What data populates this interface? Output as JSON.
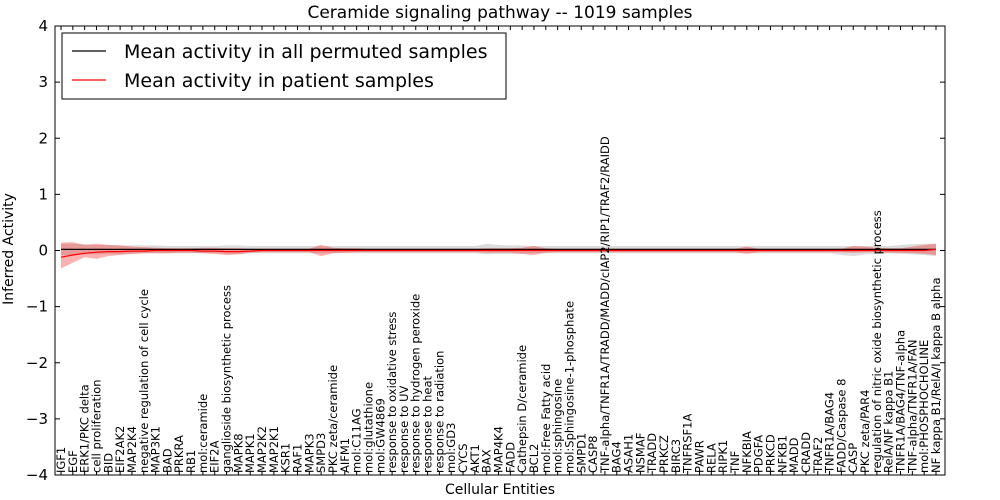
{
  "chart_data": {
    "type": "line",
    "title": "Ceramide signaling pathway -- 1019 samples",
    "xlabel": "Cellular Entities",
    "ylabel": "Inferred Activity",
    "ylim": [
      -4,
      4
    ],
    "yticks": [
      "4",
      "3",
      "2",
      "1",
      "0",
      "−1",
      "−2",
      "−3",
      "−4"
    ],
    "legend": {
      "position": "top-left",
      "entries": [
        {
          "name": "Mean activity in all permuted samples",
          "color": "#000000"
        },
        {
          "name": "Mean activity in patient samples",
          "color": "#ff0000"
        }
      ]
    },
    "categories": [
      "IGF1",
      "EGF",
      "ERK1/PKC delta",
      "cell proliferation",
      "BID",
      "EIF2AK2",
      "MAP2K4",
      "negative regulation of cell cycle",
      "MAP3K1",
      "BAD",
      "PRKRA",
      "RB1",
      "mol:ceramide",
      "EIF2A",
      "ganglioside biosynthetic process",
      "MAPK8",
      "MAPK1",
      "MAP2K2",
      "MAP2K1",
      "KSR1",
      "RAF1",
      "MAPK3",
      "SMPD3",
      "PKC zeta/ceramide",
      "AIFM1",
      "mol:C11AG",
      "mol:glutathione",
      "mol:GW4869",
      "response to oxidative stress",
      "response to UV",
      "response to hydrogen peroxide",
      "response to heat",
      "response to radiation",
      "mol:GD3",
      "CYCS",
      "AKT1",
      "BAX",
      "MAP4K4",
      "FADD",
      "Cathepsin D/ceramide",
      "BCL2",
      "mol:Free Fatty acid",
      "mol:sphingosine",
      "mol:Sphingosine-1-phosphate",
      "SMPD1",
      "CASP8",
      "TNF-alpha/TNFR1A/TRADD/MADD/cIAP2/RIP1/TRAF2/RAIDD",
      "BAG4",
      "ASAH1",
      "NSMAF",
      "TRADD",
      "PRKCZ",
      "BIRC3",
      "TNFRSF1A",
      "PAWR",
      "RELA",
      "RIPK1",
      "TNF",
      "NFKBIA",
      "PDGFA",
      "PRKCD",
      "NFKB1",
      "MADD",
      "CRADD",
      "TRAF2",
      "TNFR1A/BAG4",
      "FADD/Caspase 8",
      "CASP",
      "PKC zeta/PAR4",
      "regulation of nitric oxide biosynthetic process",
      "RelA/NF kappa B1",
      "TNFR1A/BAG4/TNF-alpha",
      "TNF-alpha/TNFR1A/FAN",
      "mol:PHOSPHOCHOLINE",
      "NF kappa B1/RelA/I kappa B alpha"
    ],
    "series": [
      {
        "name": "Mean activity in all permuted samples",
        "color": "#000000",
        "values": [
          0.02,
          0.02,
          0.02,
          0.02,
          0.02,
          0.02,
          0.02,
          0.02,
          0.02,
          0.02,
          0.02,
          0.02,
          0.02,
          0.02,
          0.02,
          0.02,
          0.02,
          0.02,
          0.02,
          0.02,
          0.02,
          0.02,
          0.02,
          0.02,
          0.02,
          0.02,
          0.02,
          0.02,
          0.02,
          0.02,
          0.02,
          0.02,
          0.02,
          0.02,
          0.02,
          0.02,
          0.02,
          0.02,
          0.02,
          0.02,
          0.02,
          0.02,
          0.02,
          0.02,
          0.02,
          0.02,
          0.02,
          0.02,
          0.02,
          0.02,
          0.02,
          0.02,
          0.02,
          0.02,
          0.02,
          0.02,
          0.02,
          0.02,
          0.02,
          0.02,
          0.02,
          0.02,
          0.02,
          0.02,
          0.02,
          0.02,
          0.02,
          0.02,
          0.02,
          0.02,
          0.02,
          0.02,
          0.02,
          0.02,
          0.02
        ],
        "band_upper": [
          0.12,
          0.12,
          0.11,
          0.1,
          0.1,
          0.09,
          0.09,
          0.09,
          0.09,
          0.08,
          0.08,
          0.08,
          0.08,
          0.08,
          0.09,
          0.09,
          0.08,
          0.08,
          0.08,
          0.08,
          0.08,
          0.08,
          0.08,
          0.08,
          0.08,
          0.08,
          0.08,
          0.08,
          0.08,
          0.08,
          0.08,
          0.08,
          0.08,
          0.08,
          0.08,
          0.08,
          0.12,
          0.1,
          0.09,
          0.09,
          0.08,
          0.08,
          0.08,
          0.08,
          0.08,
          0.08,
          0.08,
          0.08,
          0.08,
          0.08,
          0.08,
          0.08,
          0.08,
          0.08,
          0.08,
          0.08,
          0.08,
          0.08,
          0.08,
          0.08,
          0.08,
          0.08,
          0.08,
          0.08,
          0.08,
          0.08,
          0.08,
          0.08,
          0.08,
          0.08,
          0.08,
          0.1,
          0.11,
          0.12,
          0.12
        ],
        "band_lower": [
          -0.08,
          -0.08,
          -0.07,
          -0.07,
          -0.06,
          -0.06,
          -0.06,
          -0.05,
          -0.05,
          -0.05,
          -0.05,
          -0.05,
          -0.05,
          -0.05,
          -0.06,
          -0.06,
          -0.05,
          -0.05,
          -0.05,
          -0.05,
          -0.05,
          -0.05,
          -0.05,
          -0.05,
          -0.05,
          -0.05,
          -0.05,
          -0.05,
          -0.05,
          -0.05,
          -0.05,
          -0.05,
          -0.05,
          -0.05,
          -0.05,
          -0.05,
          -0.07,
          -0.06,
          -0.06,
          -0.06,
          -0.05,
          -0.05,
          -0.05,
          -0.05,
          -0.05,
          -0.05,
          -0.05,
          -0.05,
          -0.05,
          -0.05,
          -0.05,
          -0.05,
          -0.05,
          -0.05,
          -0.05,
          -0.05,
          -0.05,
          -0.05,
          -0.05,
          -0.05,
          -0.05,
          -0.05,
          -0.05,
          -0.05,
          -0.05,
          -0.05,
          -0.08,
          -0.1,
          -0.07,
          -0.06,
          -0.05,
          -0.06,
          -0.07,
          -0.08,
          -0.1
        ]
      },
      {
        "name": "Mean activity in patient samples",
        "color": "#ff0000",
        "values": [
          -0.12,
          -0.08,
          -0.05,
          -0.03,
          -0.02,
          -0.02,
          -0.01,
          -0.01,
          0.0,
          0.0,
          0.0,
          0.0,
          -0.01,
          -0.01,
          -0.02,
          -0.02,
          -0.01,
          0.0,
          0.0,
          0.0,
          0.0,
          0.0,
          0.0,
          0.0,
          0.0,
          0.0,
          0.0,
          0.0,
          0.0,
          0.0,
          0.0,
          0.0,
          0.0,
          0.0,
          0.0,
          0.0,
          0.0,
          0.0,
          0.0,
          0.0,
          0.0,
          0.0,
          0.0,
          0.0,
          0.0,
          0.0,
          0.0,
          0.0,
          0.0,
          0.0,
          0.0,
          0.0,
          0.0,
          0.0,
          0.0,
          0.0,
          0.0,
          0.0,
          0.0,
          0.0,
          0.0,
          0.0,
          0.0,
          0.0,
          0.0,
          0.0,
          0.0,
          0.0,
          0.0,
          0.0,
          0.0,
          0.0,
          0.0,
          0.0,
          0.02
        ],
        "band_upper": [
          0.14,
          0.15,
          0.1,
          0.12,
          0.1,
          0.09,
          0.07,
          0.06,
          0.05,
          0.04,
          0.04,
          0.04,
          0.05,
          0.05,
          0.04,
          0.04,
          0.03,
          0.03,
          0.03,
          0.03,
          0.03,
          0.03,
          0.1,
          0.05,
          0.04,
          0.04,
          0.03,
          0.03,
          0.03,
          0.03,
          0.03,
          0.03,
          0.03,
          0.03,
          0.03,
          0.03,
          0.04,
          0.04,
          0.04,
          0.05,
          0.08,
          0.04,
          0.03,
          0.03,
          0.03,
          0.03,
          0.03,
          0.03,
          0.03,
          0.03,
          0.03,
          0.03,
          0.03,
          0.03,
          0.03,
          0.03,
          0.03,
          0.03,
          0.07,
          0.03,
          0.03,
          0.03,
          0.03,
          0.03,
          0.03,
          0.03,
          0.03,
          0.08,
          0.07,
          0.05,
          0.04,
          0.04,
          0.07,
          0.1,
          0.12
        ],
        "band_lower": [
          -0.32,
          -0.22,
          -0.12,
          -0.15,
          -0.1,
          -0.08,
          -0.06,
          -0.05,
          -0.05,
          -0.05,
          -0.04,
          -0.04,
          -0.05,
          -0.06,
          -0.08,
          -0.07,
          -0.04,
          -0.03,
          -0.03,
          -0.03,
          -0.03,
          -0.03,
          -0.1,
          -0.05,
          -0.04,
          -0.03,
          -0.03,
          -0.03,
          -0.03,
          -0.03,
          -0.03,
          -0.03,
          -0.03,
          -0.03,
          -0.03,
          -0.03,
          -0.04,
          -0.04,
          -0.04,
          -0.06,
          -0.08,
          -0.04,
          -0.03,
          -0.03,
          -0.03,
          -0.03,
          -0.03,
          -0.03,
          -0.03,
          -0.03,
          -0.03,
          -0.03,
          -0.03,
          -0.03,
          -0.03,
          -0.03,
          -0.03,
          -0.03,
          -0.06,
          -0.03,
          -0.03,
          -0.03,
          -0.03,
          -0.03,
          -0.03,
          -0.03,
          -0.03,
          -0.04,
          -0.03,
          -0.03,
          -0.04,
          -0.04,
          -0.05,
          -0.06,
          -0.08
        ]
      }
    ]
  }
}
